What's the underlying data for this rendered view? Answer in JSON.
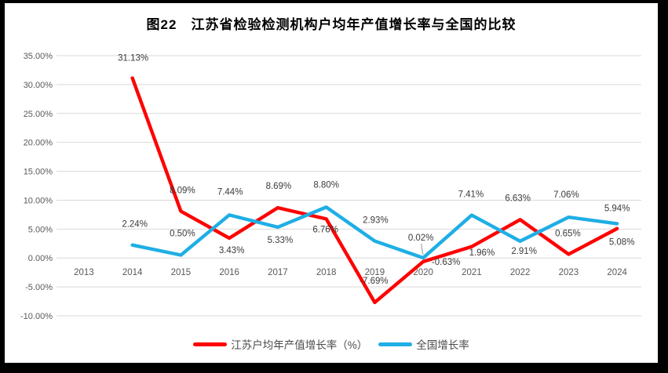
{
  "title": "图22　江苏省检验检测机构户均年产值增长率与全国的比较",
  "frame_color": "#000000",
  "chart_data": {
    "type": "line",
    "title": "图22　江苏省检验检测机构户均年产值增长率与全国的比较",
    "categories": [
      "2013",
      "2014",
      "2015",
      "2016",
      "2017",
      "2018",
      "2019",
      "2020",
      "2021",
      "2022",
      "2023",
      "2024"
    ],
    "series": [
      {
        "name": "江苏户均年产值增长率（%）",
        "color": "#FF0000",
        "values": [
          null,
          31.13,
          8.09,
          3.43,
          8.69,
          6.76,
          -7.69,
          -0.63,
          1.96,
          6.63,
          0.65,
          5.08
        ],
        "labels": [
          null,
          "31.13%",
          "8.09%",
          "3.43%",
          "8.69%",
          "6.76%",
          "-7.69%",
          "-0.63%",
          "1.96%",
          "6.63%",
          "0.65%",
          "5.08%"
        ],
        "label_offsets": [
          null,
          [
            1,
            -22
          ],
          [
            2,
            -23
          ],
          [
            3,
            19
          ],
          [
            1,
            -24
          ],
          [
            -1,
            17
          ],
          [
            -1,
            -24
          ],
          [
            29,
            4
          ],
          [
            13,
            11
          ],
          [
            -3,
            -24
          ],
          [
            -1,
            -23
          ],
          [
            6,
            21
          ]
        ]
      },
      {
        "name": "全国增长率",
        "color": "#1FAEE5",
        "values": [
          null,
          2.24,
          0.5,
          7.44,
          5.33,
          8.8,
          2.93,
          0.02,
          7.41,
          2.91,
          7.06,
          5.94
        ],
        "labels": [
          null,
          "2.24%",
          "0.50%",
          "7.44%",
          "5.33%",
          "8.80%",
          "2.93%",
          "0.02%",
          "7.41%",
          "2.91%",
          "7.06%",
          "5.94%"
        ],
        "label_offsets": [
          null,
          [
            3,
            -23
          ],
          [
            2,
            -24
          ],
          [
            1,
            -26
          ],
          [
            3,
            20
          ],
          [
            0,
            -25
          ],
          [
            1,
            -23
          ],
          [
            -3,
            -22
          ],
          [
            -1,
            -23
          ],
          [
            5,
            16
          ],
          [
            -3,
            -25
          ],
          [
            0,
            -16
          ]
        ]
      }
    ],
    "ylim": [
      -10,
      35
    ],
    "ytick_step": 5,
    "ytick_labels": [
      "35.00%",
      "30.00%",
      "25.00%",
      "20.00%",
      "15.00%",
      "10.00%",
      "5.00%",
      "0.00%",
      "-5.00%",
      "-10.00%"
    ],
    "xlabel": "",
    "ylabel": "",
    "grid": true,
    "grid_color": "#D9D9D9",
    "axis_label_color": "#595959",
    "data_label_color": "#3a3a3a",
    "legend_position": "bottom",
    "callout": {
      "series_index": 1,
      "point_index": 7,
      "color": "#A6A6A6"
    }
  }
}
